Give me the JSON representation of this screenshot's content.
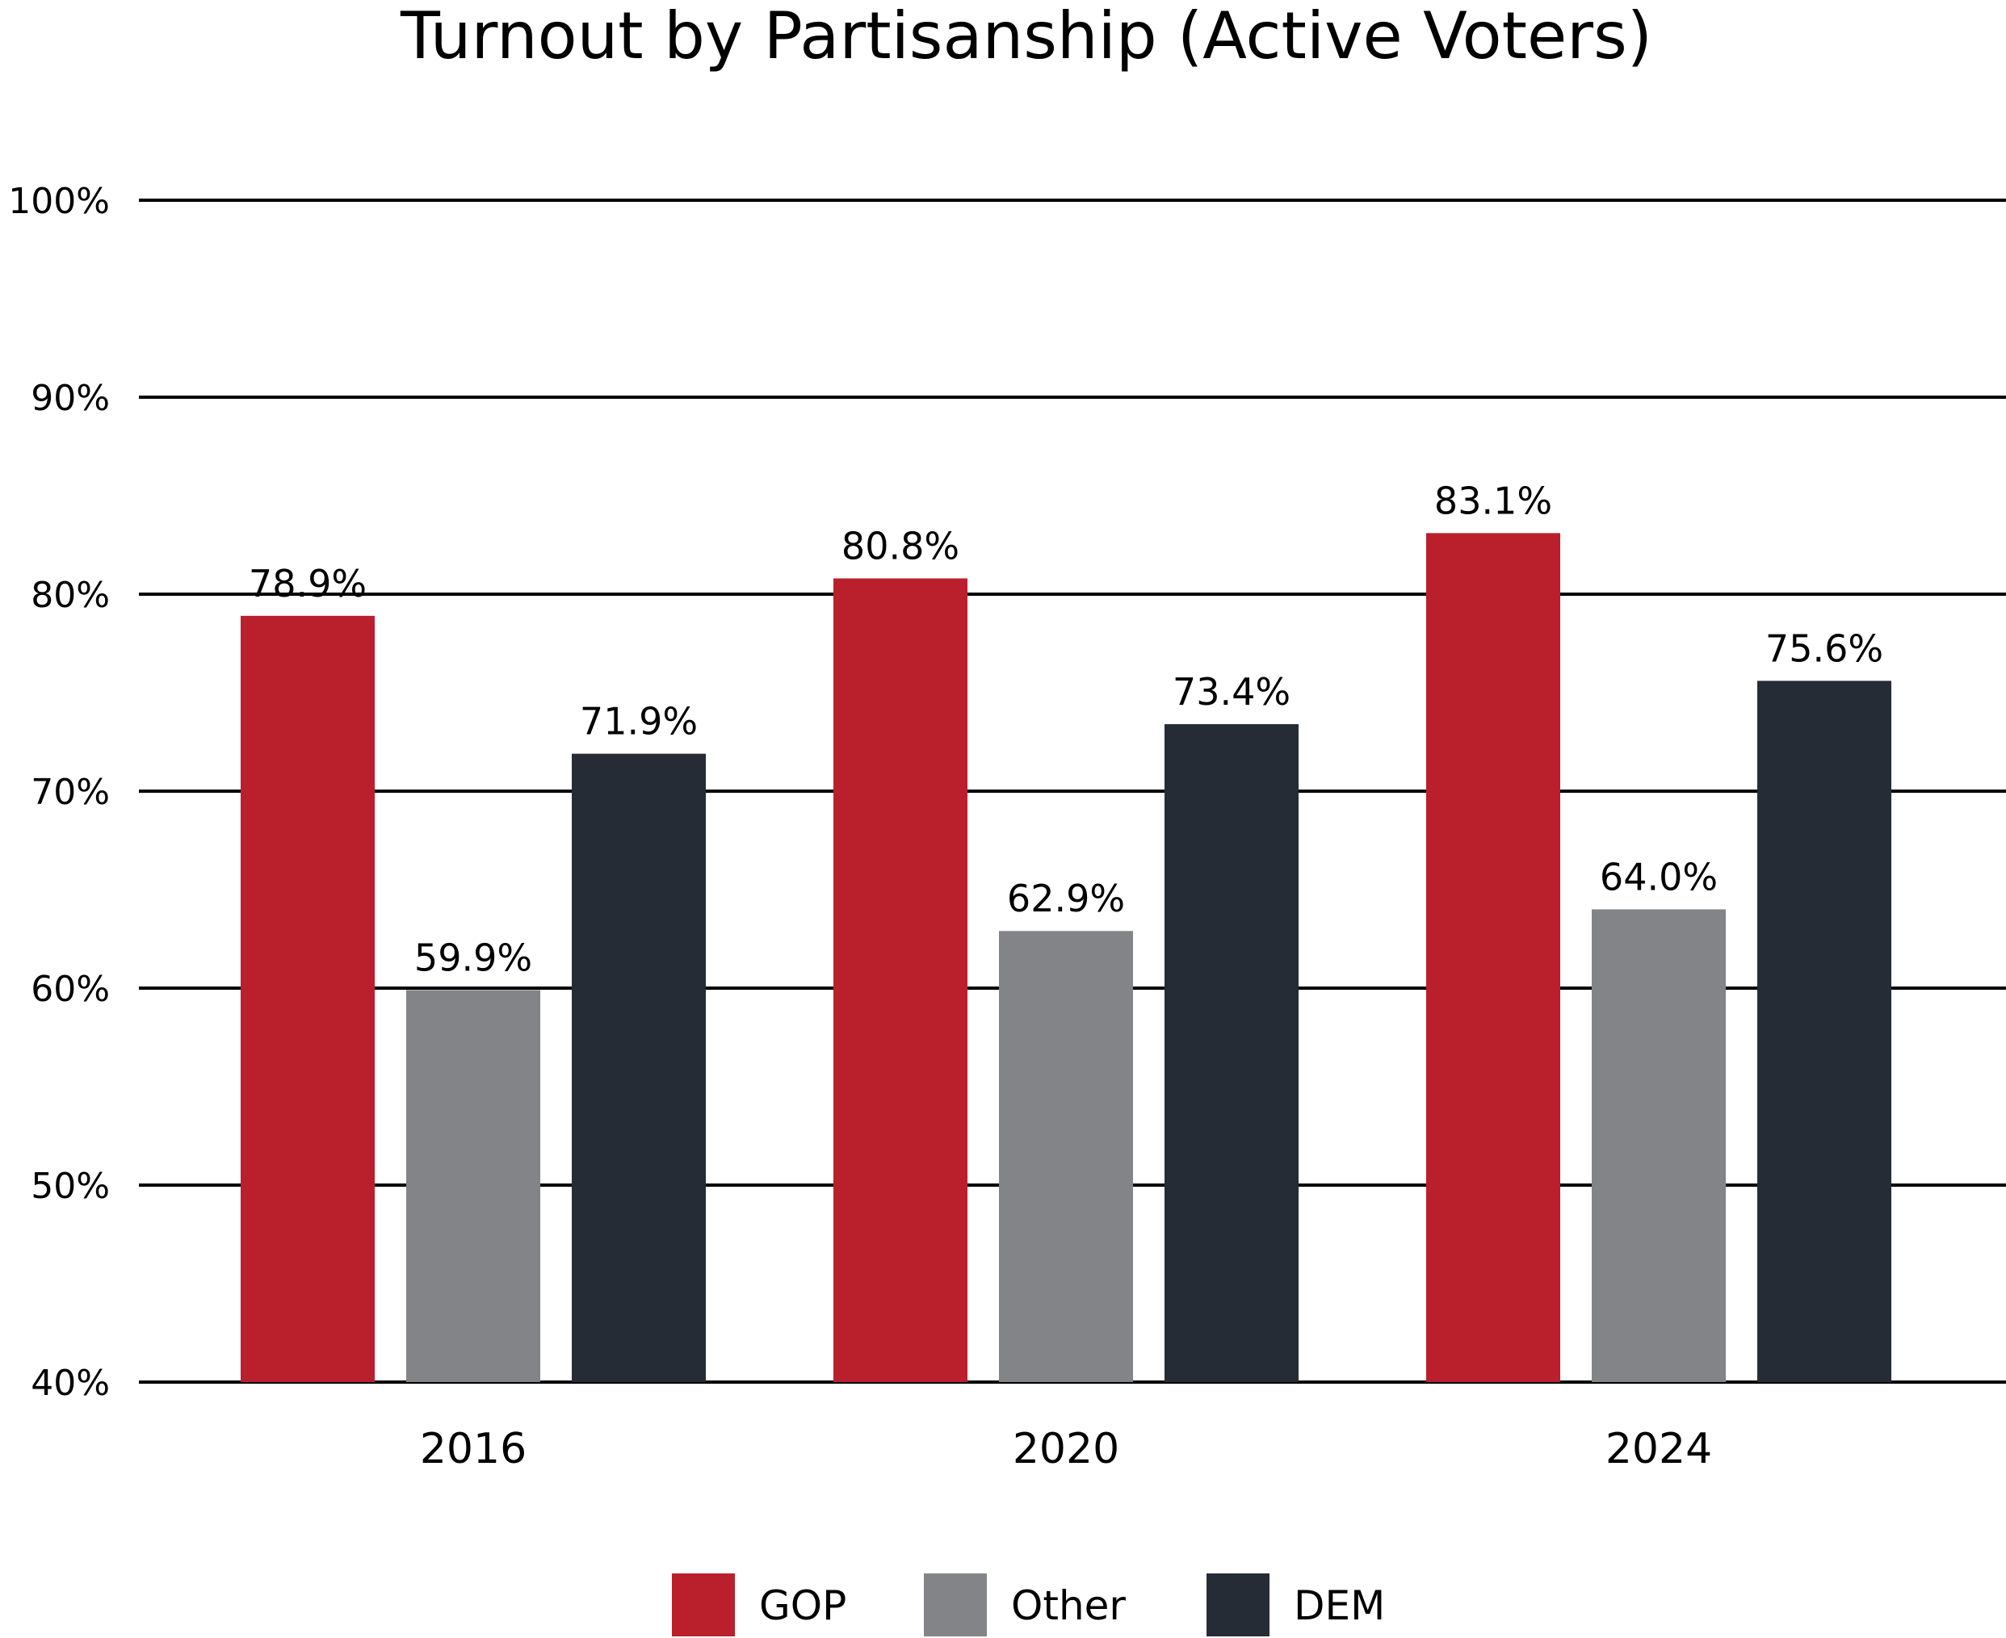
{
  "chart_data": {
    "type": "bar",
    "title": "Turnout by Partisanship (Active Voters)",
    "xlabel": "",
    "ylabel": "",
    "categories": [
      "2016",
      "2020",
      "2024"
    ],
    "series": [
      {
        "name": "GOP",
        "color": "#BA1F2C",
        "values": [
          78.9,
          80.8,
          83.1
        ],
        "labels": [
          "78.9%",
          "80.8%",
          "83.1%"
        ]
      },
      {
        "name": "Other",
        "color": "#838487",
        "values": [
          59.9,
          62.9,
          64.0
        ],
        "labels": [
          "59.9%",
          "62.9%",
          "64.0%"
        ]
      },
      {
        "name": "DEM",
        "color": "#252C36",
        "values": [
          71.9,
          73.4,
          75.6
        ],
        "labels": [
          "71.9%",
          "73.4%",
          "75.6%"
        ]
      }
    ],
    "ylim": [
      40,
      100
    ],
    "yticks": [
      40,
      50,
      60,
      70,
      80,
      90,
      100
    ],
    "ytick_labels": [
      "40%",
      "50%",
      "60%",
      "70%",
      "80%",
      "90%",
      "100%"
    ],
    "grid": true,
    "legend_position": "bottom-center"
  }
}
